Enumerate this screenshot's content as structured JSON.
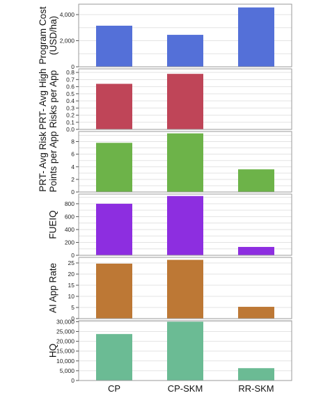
{
  "chart_data": [
    {
      "type": "bar",
      "categories": [
        "CP",
        "CP-SKM",
        "RR-SKM"
      ],
      "ylabel": [
        "Program Cost",
        "(USD/ha)"
      ],
      "values": [
        3150,
        2450,
        4550
      ],
      "ylim": [
        0,
        4800
      ],
      "ticks": [
        "0",
        "2,000",
        "4,000"
      ],
      "tick_values": [
        0,
        2000,
        4000
      ],
      "minor_step": 1000,
      "color": "#5470d8"
    },
    {
      "type": "bar",
      "categories": [
        "CP",
        "CP-SKM",
        "RR-SKM"
      ],
      "ylabel": [
        "PRT- Avg High",
        "Risks per App"
      ],
      "values": [
        0.64,
        0.78,
        0
      ],
      "ylim": [
        0,
        0.85
      ],
      "ticks": [
        "0.0",
        "0.1",
        "0.2",
        "0.3",
        "0.4",
        "0.5",
        "0.6",
        "0.7",
        "0.8"
      ],
      "tick_values": [
        0,
        0.1,
        0.2,
        0.3,
        0.4,
        0.5,
        0.6,
        0.7,
        0.8
      ],
      "minor_step": 0.1,
      "color": "#bf4558"
    },
    {
      "type": "bar",
      "categories": [
        "CP",
        "CP-SKM",
        "RR-SKM"
      ],
      "ylabel": [
        "PRT- Avg Risk",
        "Points per App"
      ],
      "values": [
        7.8,
        9.3,
        3.6
      ],
      "ylim": [
        0,
        9.6
      ],
      "ticks": [
        "0",
        "2",
        "4",
        "6",
        "8"
      ],
      "tick_values": [
        0,
        2,
        4,
        6,
        8
      ],
      "minor_step": 1,
      "color": "#6db349"
    },
    {
      "type": "bar",
      "categories": [
        "CP",
        "CP-SKM",
        "RR-SKM"
      ],
      "ylabel": [
        "FUEIQ"
      ],
      "values": [
        800,
        920,
        130
      ],
      "ylim": [
        0,
        950
      ],
      "ticks": [
        "0",
        "200",
        "400",
        "600",
        "800"
      ],
      "tick_values": [
        0,
        200,
        400,
        600,
        800
      ],
      "minor_step": 100,
      "color": "#8d2ee0"
    },
    {
      "type": "bar",
      "categories": [
        "CP",
        "CP-SKM",
        "RR-SKM"
      ],
      "ylabel": [
        "AI App Rate"
      ],
      "values": [
        24.7,
        26.4,
        5.3
      ],
      "ylim": [
        0,
        27.5
      ],
      "ticks": [
        "0",
        "5",
        "10",
        "15",
        "20",
        "25"
      ],
      "tick_values": [
        0,
        5,
        10,
        15,
        20,
        25
      ],
      "minor_step": 5,
      "color": "#bd7835"
    },
    {
      "type": "bar",
      "categories": [
        "CP",
        "CP-SKM",
        "RR-SKM"
      ],
      "ylabel": [
        "HQ"
      ],
      "values": [
        23700,
        30000,
        6300
      ],
      "ylim": [
        0,
        30500
      ],
      "ticks": [
        "0",
        "5,000",
        "10,000",
        "15,000",
        "20,000",
        "25,000",
        "30,000"
      ],
      "tick_values": [
        0,
        5000,
        10000,
        15000,
        20000,
        25000,
        30000
      ],
      "minor_step": 5000,
      "color": "#6bbb94"
    }
  ],
  "x_categories": [
    "CP",
    "CP-SKM",
    "RR-SKM"
  ]
}
